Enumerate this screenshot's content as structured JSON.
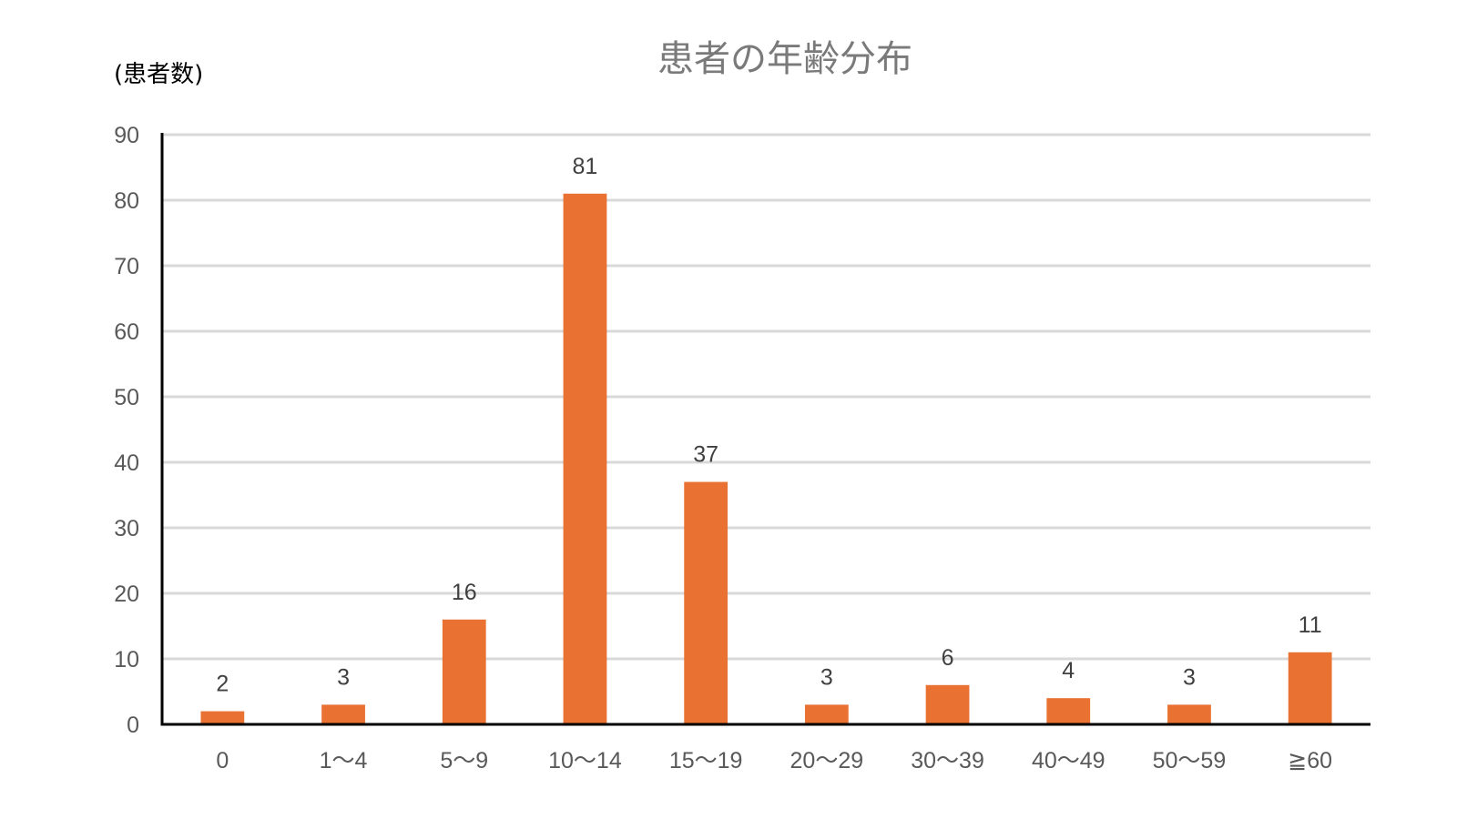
{
  "chart_data": {
    "type": "bar",
    "title": "患者の年齢分布",
    "xlabel": "",
    "ylabel": "(患者数)",
    "categories": [
      "0",
      "1～4",
      "5～9",
      "10～14",
      "15～19",
      "20～29",
      "30～39",
      "40～49",
      "50～59",
      "≧60"
    ],
    "values": [
      2,
      3,
      16,
      81,
      37,
      3,
      6,
      4,
      3,
      11
    ],
    "ylim": [
      0,
      90
    ],
    "yticks": [
      0,
      10,
      20,
      30,
      40,
      50,
      60,
      70,
      80,
      90
    ],
    "grid": true,
    "data_labels": true,
    "bar_color": "#E97132"
  }
}
